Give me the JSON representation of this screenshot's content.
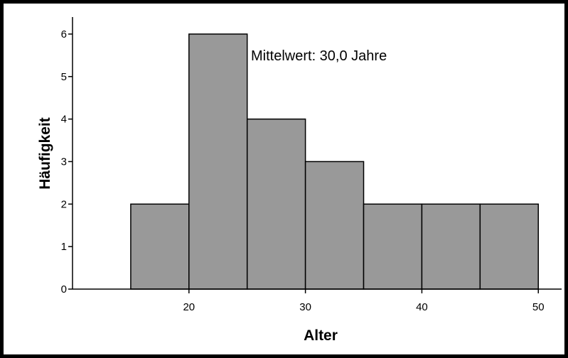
{
  "chart_data": {
    "type": "bar",
    "subtype": "histogram",
    "bins": [
      {
        "start": 15,
        "end": 20,
        "count": 2
      },
      {
        "start": 20,
        "end": 25,
        "count": 6
      },
      {
        "start": 25,
        "end": 30,
        "count": 4
      },
      {
        "start": 30,
        "end": 35,
        "count": 3
      },
      {
        "start": 35,
        "end": 40,
        "count": 2
      },
      {
        "start": 40,
        "end": 45,
        "count": 2
      },
      {
        "start": 45,
        "end": 50,
        "count": 2
      }
    ],
    "xlabel": "Alter",
    "ylabel": "Häufigkeit",
    "annotation": "Mittelwert: 30,0 Jahre",
    "xlim": [
      10,
      52
    ],
    "ylim": [
      0,
      6.4
    ],
    "xticks": [
      20,
      30,
      40,
      50
    ],
    "yticks": [
      0,
      1,
      2,
      3,
      4,
      5,
      6
    ],
    "grid": false,
    "bar_color": "#999999",
    "edge_color": "#000000"
  }
}
